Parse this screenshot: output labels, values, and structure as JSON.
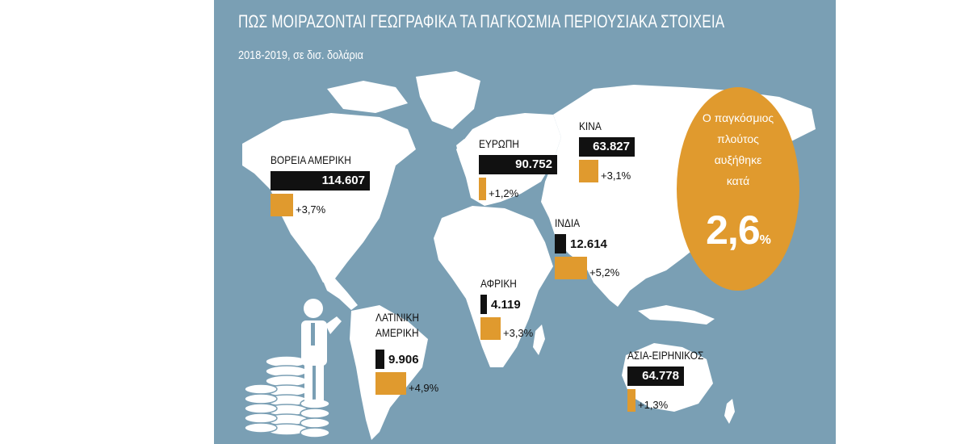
{
  "header": {
    "title": "ΠΩΣ ΜΟΙΡΑΖΟΝΤΑΙ ΓΕΩΓΡΑΦΙΚΑ ΤΑ ΠΑΓΚΟΣΜΙΑ ΠΕΡΙΟΥΣΙΑΚΑ ΣΤΟΙΧΕΙΑ",
    "subtitle": "2018-2019, σε δισ. δολάρια"
  },
  "badge": {
    "line1": "Ο παγκόσμιος",
    "line2": "πλούτος",
    "line3": "αυξήθηκε",
    "line4": "κατά",
    "value": "2,6",
    "unit": "%"
  },
  "colors": {
    "background": "#7a9fb4",
    "land": "#ffffff",
    "value_bar": "#111111",
    "growth_bar": "#e09a2e"
  },
  "chart_data": {
    "type": "bar",
    "title": "ΠΩΣ ΜΟΙΡΑΖΟΝΤΑΙ ΓΕΩΓΡΑΦΙΚΑ ΤΑ ΠΑΓΚΟΣΜΙΑ ΠΕΡΙΟΥΣΙΑΚΑ ΣΤΟΙΧΕΙΑ",
    "subtitle": "2018-2019, σε δισ. δολάρια",
    "categories": [
      "ΒΟΡΕΙΑ ΑΜΕΡΙΚΗ",
      "ΕΥΡΩΠΗ",
      "ΚΙΝΑ",
      "ΙΝΔΙΑ",
      "ΑΦΡΙΚΗ",
      "ΛΑΤΙΝΙΚΗ ΑΜΕΡΙΚΗ",
      "ΑΣΙΑ-ΕΙΡΗΝΙΚΟΣ"
    ],
    "values": [
      114607,
      90752,
      63827,
      12614,
      4119,
      9906,
      64778
    ],
    "value_labels": [
      "114.607",
      "90.752",
      "63.827",
      "12.614",
      "4.119",
      "9.906",
      "64.778"
    ],
    "growth": [
      3.7,
      1.2,
      3.1,
      5.2,
      3.3,
      4.9,
      1.3
    ],
    "growth_labels": [
      "+3,7%",
      "+1,2%",
      "+3,1%",
      "+5,2%",
      "+3,3%",
      "+4,9%",
      "+1,3%"
    ],
    "total_growth": 2.6,
    "grid": false
  }
}
